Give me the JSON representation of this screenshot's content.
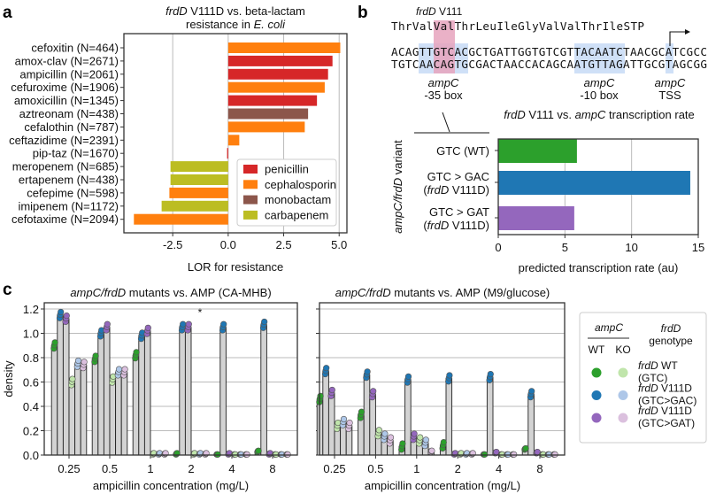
{
  "panel_labels": {
    "a": "a",
    "b": "b",
    "c": "c"
  },
  "chart_data": [
    {
      "type": "bar",
      "orientation": "horizontal",
      "title_parts": [
        "frdD",
        " V111D vs. beta-lactam",
        "resistance in ",
        "E. coli"
      ],
      "xlabel": "LOR for resistance",
      "xlim": [
        -4.7,
        5.35
      ],
      "xticks": [
        "-2.5",
        "0.0",
        "2.5",
        "5.0"
      ],
      "xtick_values": [
        -2.5,
        0,
        2.5,
        5
      ],
      "grid": "x",
      "categories": [
        "cefoxitin (N=464)",
        "amox-clav (N=2671)",
        "ampicillin (N=2061)",
        "cefuroxime (N=1906)",
        "amoxicillin (N=1345)",
        "aztreonam (N=438)",
        "cefalothin (N=787)",
        "ceftazidime (N=2391)",
        "pip-taz (N=1670)",
        "meropenem (N=685)",
        "ertapenem (N=438)",
        "cefepime (N=598)",
        "imipenem (N=1172)",
        "cefotaxime (N=2094)"
      ],
      "values": [
        5.05,
        4.7,
        4.5,
        4.35,
        4.0,
        3.6,
        3.45,
        0.5,
        -0.05,
        -2.6,
        -2.6,
        -2.65,
        -3.0,
        -4.25
      ],
      "classes": [
        "cephalosporin",
        "penicillin",
        "penicillin",
        "cephalosporin",
        "penicillin",
        "monobactam",
        "cephalosporin",
        "cephalosporin",
        "penicillin",
        "carbapenem",
        "carbapenem",
        "cephalosporin",
        "carbapenem",
        "cephalosporin"
      ],
      "legend": {
        "position": "lower-right",
        "entries": [
          {
            "label": "penicillin",
            "color": "#d62728"
          },
          {
            "label": "cephalosporin",
            "color": "#ff7f0e"
          },
          {
            "label": "monobactam",
            "color": "#8c564b"
          },
          {
            "label": "carbapenem",
            "color": "#bcbd22"
          }
        ]
      }
    },
    {
      "type": "bar",
      "orientation": "horizontal",
      "title_parts": [
        "frdD",
        " V111 vs. ",
        "ampC",
        " transcription rate"
      ],
      "xlabel": "predicted transcription rate (au)",
      "ylabel_parts": [
        "ampC/frdD",
        " variant"
      ],
      "xlim": [
        0,
        15
      ],
      "xticks": [
        "0",
        "5",
        "10",
        "15"
      ],
      "xtick_values": [
        0,
        5,
        10,
        15
      ],
      "grid": "x",
      "categories": [
        [
          "GTC (WT)"
        ],
        [
          "GTC > GAC",
          "frdD",
          " V111D)"
        ],
        [
          "GTC > GAT",
          "frdD",
          " V111D)"
        ]
      ],
      "values": [
        5.9,
        14.4,
        5.7
      ],
      "colors": [
        "#2ca02c",
        "#1f77b4",
        "#9467bd"
      ]
    },
    {
      "type": "bar",
      "title_parts": [
        "ampC/frdD",
        " mutants vs. AMP (CA-MHB)"
      ],
      "xlabel": "ampicillin concentration (mg/L)",
      "ylabel": "density",
      "ylim": [
        0,
        1.25
      ],
      "yticks": [
        "0.0",
        "0.2",
        "0.4",
        "0.6",
        "0.8",
        "1.0",
        "1.2"
      ],
      "ytick_values": [
        0,
        0.2,
        0.4,
        0.6,
        0.8,
        1.0,
        1.2
      ],
      "categories": [
        "0.25",
        "0.5",
        "1",
        "2",
        "4",
        "8"
      ],
      "series": [
        {
          "name": "ampC WT / frdD WT (GTC)",
          "values": [
            0.9,
            0.79,
            0.82,
            0.01,
            0.0,
            0.03
          ]
        },
        {
          "name": "ampC WT / frdD V111D (GTC>GAC)",
          "values": [
            1.15,
            1.0,
            0.98,
            1.05,
            1.05,
            1.07
          ]
        },
        {
          "name": "ampC WT / frdD V111D (GTC>GAT)",
          "values": [
            1.12,
            1.05,
            1.02,
            1.05,
            0.01,
            0.01
          ]
        },
        {
          "name": "ampC KO / frdD WT (GTC)",
          "values": [
            0.6,
            0.62,
            0.01,
            0.01,
            0.0,
            0.0
          ]
        },
        {
          "name": "ampC KO / frdD V111D (GTC>GAC)",
          "values": [
            0.75,
            0.68,
            0.01,
            0.01,
            0.0,
            0.0
          ]
        },
        {
          "name": "ampC KO / frdD V111D (GTC>GAT)",
          "values": [
            0.74,
            0.68,
            0.01,
            0.01,
            0.0,
            0.0
          ]
        }
      ],
      "annotation": "*"
    },
    {
      "type": "bar",
      "title_parts": [
        "ampC/frdD",
        " mutants vs. AMP (M9/glucose)"
      ],
      "xlabel": "ampicillin concentration (mg/L)",
      "ylim": [
        0,
        1.25
      ],
      "categories": [
        "0.25",
        "0.5",
        "1",
        "2",
        "4",
        "8"
      ],
      "series": [
        {
          "name": "ampC WT / frdD WT (GTC)",
          "values": [
            0.46,
            0.33,
            0.07,
            0.08,
            0.0,
            0.05
          ]
        },
        {
          "name": "ampC WT / frdD V111D (GTC>GAC)",
          "values": [
            0.69,
            0.66,
            0.62,
            0.63,
            0.64,
            0.5
          ]
        },
        {
          "name": "ampC WT / frdD V111D (GTC>GAT)",
          "values": [
            0.51,
            0.5,
            0.15,
            0.01,
            0.02,
            0.02
          ]
        },
        {
          "name": "ampC KO / frdD WT (GTC)",
          "values": [
            0.24,
            0.18,
            0.12,
            0.01,
            0.0,
            0.0
          ]
        },
        {
          "name": "ampC KO / frdD V111D (GTC>GAC)",
          "values": [
            0.27,
            0.15,
            0.1,
            0.01,
            0.0,
            0.0
          ]
        },
        {
          "name": "ampC KO / frdD V111D (GTC>GAT)",
          "values": [
            0.24,
            0.12,
            0.03,
            0.01,
            0.0,
            0.0
          ]
        }
      ]
    }
  ],
  "sequence": {
    "header_parts": [
      "frdD",
      " V111"
    ],
    "protein": "ThrValValThrLeuIleGlyValValThrIleSTP",
    "top_strand": "ACAGTTGTCACGCTGATTGGTGTCGTTACAATCTAACGCATCGCC",
    "bottom_strand": "TGTCAACAGTGCGACTAACCACAGCAATGTTAGATTGCGTAGCGG",
    "features": [
      {
        "gene": "ampC",
        "label": "-35 box"
      },
      {
        "gene": "ampC",
        "label": "-10 box"
      },
      {
        "gene": "ampC",
        "label": "TSS"
      }
    ],
    "highlight_colors": {
      "codon": "#e6a3bd",
      "box": "#cfe0f7"
    }
  },
  "legend_c": {
    "ampc_header": "ampC",
    "wt": "WT",
    "ko": "KO",
    "frdd_header": "frdD",
    "genotype": "genotype",
    "entries": [
      {
        "it": "frdD",
        "rest": " WT",
        "sub": "(GTC)",
        "wt_color": "#2ca02c",
        "ko_color": "#c0e5ab"
      },
      {
        "it": "frdD",
        "rest": " V111D",
        "sub": "(GTC>GAC)",
        "wt_color": "#1f77b4",
        "ko_color": "#aec7e8"
      },
      {
        "it": "frdD",
        "rest": " V111D",
        "sub": "(GTC>GAT)",
        "wt_color": "#9467bd",
        "ko_color": "#dbc0de"
      }
    ]
  }
}
